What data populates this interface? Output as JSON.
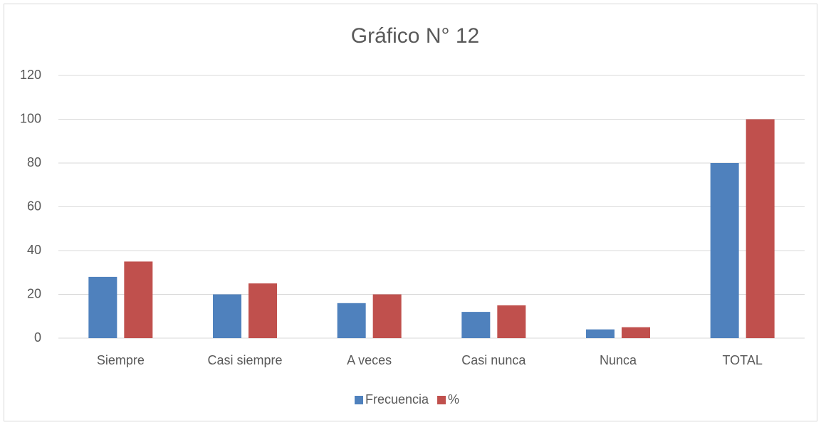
{
  "chart_data": {
    "type": "bar",
    "title": "Gráfico N° 12",
    "categories": [
      "Siempre",
      "Casi siempre",
      "A veces",
      "Casi nunca",
      "Nunca",
      "TOTAL"
    ],
    "series": [
      {
        "name": "Frecuencia",
        "color": "#4f81bd",
        "values": [
          28,
          20,
          16,
          12,
          4,
          80
        ]
      },
      {
        "name": "%",
        "color": "#c0504d",
        "values": [
          35,
          25,
          20,
          15,
          5,
          100
        ]
      }
    ],
    "ylim": [
      0,
      120
    ],
    "yticks": [
      0,
      20,
      40,
      60,
      80,
      100,
      120
    ],
    "grid": true,
    "legend": "bottom"
  }
}
